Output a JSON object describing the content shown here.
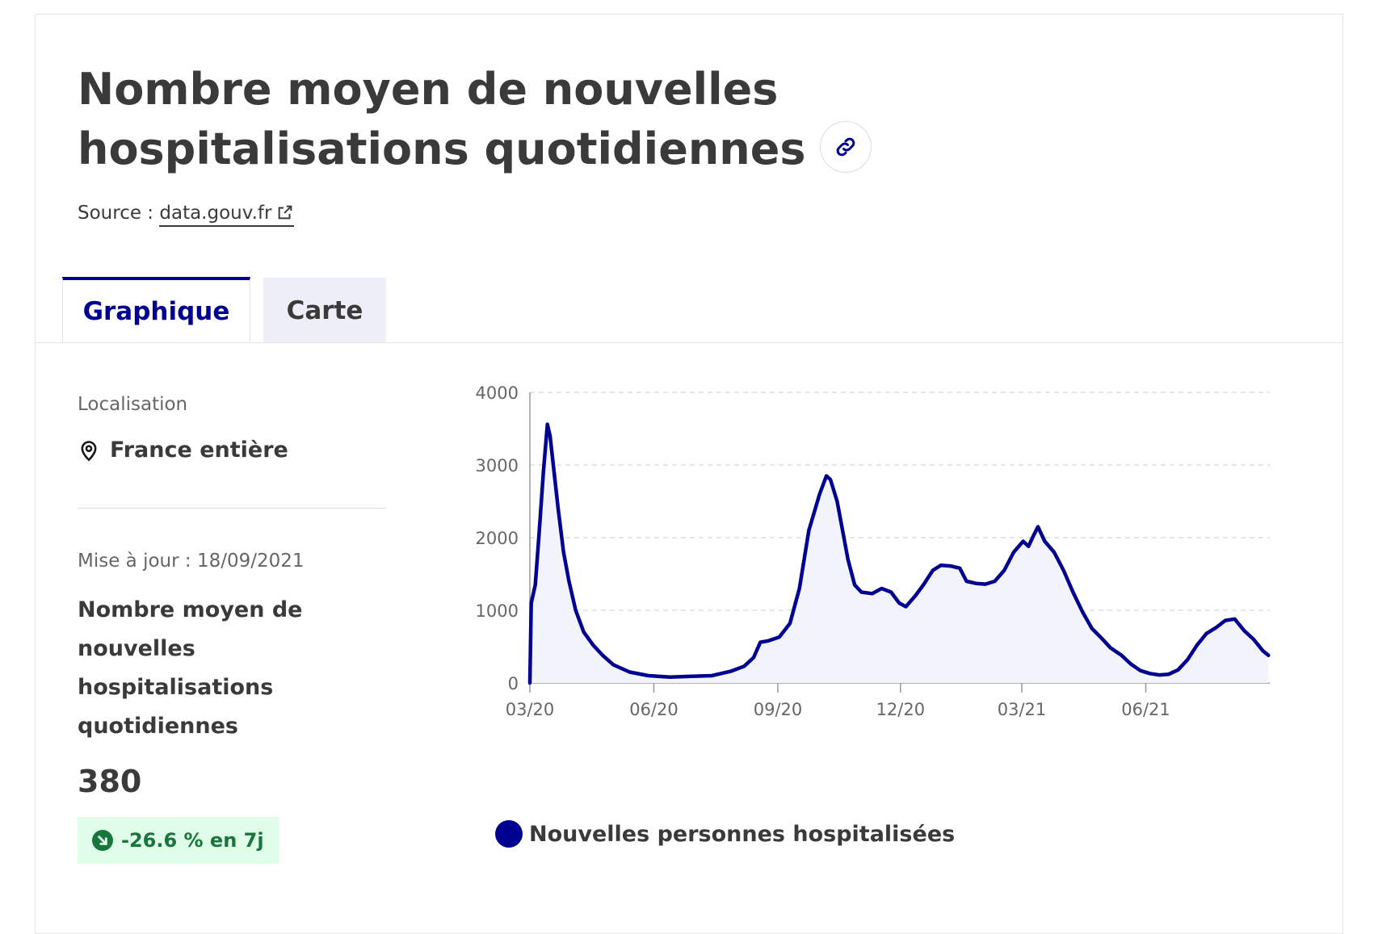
{
  "header": {
    "title": "Nombre moyen de nouvelles hospitalisations quotidiennes",
    "source_prefix": "Source : ",
    "source_link": "data.gouv.fr"
  },
  "tabs": [
    {
      "label": "Graphique",
      "active": true
    },
    {
      "label": "Carte",
      "active": false
    }
  ],
  "sidebar": {
    "location_label": "Localisation",
    "location_value": "France entière",
    "updated": "Mise à jour : 18/09/2021",
    "kpi_title": "Nombre moyen de nouvelles hospitalisations quotidiennes",
    "kpi_value": "380",
    "kpi_change": "-26.6 % en 7j"
  },
  "colors": {
    "accent": "#000091",
    "badge_bg": "#dffde9",
    "badge_text": "#18753c",
    "area_fill": "#f3f3fb"
  },
  "icons": {
    "link": "link-icon",
    "external": "external-link-icon",
    "location": "map-pin-icon",
    "trend": "arrow-down-right-icon"
  },
  "chart_data": {
    "type": "area",
    "series": [
      {
        "name": "Nouvelles personnes hospitalisées",
        "points": [
          [
            "2020-03-19",
            0
          ],
          [
            "2020-03-20",
            1100
          ],
          [
            "2020-03-23",
            1350
          ],
          [
            "2020-03-26",
            2100
          ],
          [
            "2020-03-29",
            2900
          ],
          [
            "2020-04-01",
            3560
          ],
          [
            "2020-04-03",
            3400
          ],
          [
            "2020-04-06",
            2900
          ],
          [
            "2020-04-09",
            2400
          ],
          [
            "2020-04-13",
            1800
          ],
          [
            "2020-04-17",
            1400
          ],
          [
            "2020-04-22",
            1000
          ],
          [
            "2020-04-28",
            700
          ],
          [
            "2020-05-05",
            520
          ],
          [
            "2020-05-12",
            380
          ],
          [
            "2020-05-20",
            250
          ],
          [
            "2020-06-01",
            150
          ],
          [
            "2020-06-15",
            100
          ],
          [
            "2020-07-01",
            80
          ],
          [
            "2020-07-15",
            90
          ],
          [
            "2020-08-01",
            100
          ],
          [
            "2020-08-15",
            160
          ],
          [
            "2020-08-25",
            230
          ],
          [
            "2020-09-01",
            350
          ],
          [
            "2020-09-06",
            560
          ],
          [
            "2020-09-12",
            580
          ],
          [
            "2020-09-20",
            630
          ],
          [
            "2020-09-28",
            820
          ],
          [
            "2020-10-05",
            1300
          ],
          [
            "2020-10-12",
            2100
          ],
          [
            "2020-10-20",
            2600
          ],
          [
            "2020-10-25",
            2850
          ],
          [
            "2020-10-28",
            2800
          ],
          [
            "2020-11-02",
            2500
          ],
          [
            "2020-11-06",
            2100
          ],
          [
            "2020-11-10",
            1700
          ],
          [
            "2020-11-15",
            1350
          ],
          [
            "2020-11-20",
            1250
          ],
          [
            "2020-11-28",
            1230
          ],
          [
            "2020-12-05",
            1300
          ],
          [
            "2020-12-12",
            1250
          ],
          [
            "2020-12-18",
            1100
          ],
          [
            "2020-12-23",
            1050
          ],
          [
            "2020-12-30",
            1200
          ],
          [
            "2021-01-05",
            1350
          ],
          [
            "2021-01-12",
            1550
          ],
          [
            "2021-01-18",
            1620
          ],
          [
            "2021-01-25",
            1610
          ],
          [
            "2021-02-01",
            1580
          ],
          [
            "2021-02-06",
            1400
          ],
          [
            "2021-02-13",
            1370
          ],
          [
            "2021-02-20",
            1360
          ],
          [
            "2021-02-27",
            1400
          ],
          [
            "2021-03-06",
            1550
          ],
          [
            "2021-03-13",
            1800
          ],
          [
            "2021-03-20",
            1950
          ],
          [
            "2021-03-24",
            1880
          ],
          [
            "2021-03-27",
            2000
          ],
          [
            "2021-03-31",
            2150
          ],
          [
            "2021-04-05",
            1950
          ],
          [
            "2021-04-12",
            1800
          ],
          [
            "2021-04-19",
            1550
          ],
          [
            "2021-04-26",
            1250
          ],
          [
            "2021-05-03",
            980
          ],
          [
            "2021-05-10",
            750
          ],
          [
            "2021-05-17",
            620
          ],
          [
            "2021-05-24",
            480
          ],
          [
            "2021-06-01",
            380
          ],
          [
            "2021-06-08",
            260
          ],
          [
            "2021-06-15",
            170
          ],
          [
            "2021-06-22",
            130
          ],
          [
            "2021-06-29",
            110
          ],
          [
            "2021-07-06",
            120
          ],
          [
            "2021-07-13",
            180
          ],
          [
            "2021-07-20",
            320
          ],
          [
            "2021-07-27",
            520
          ],
          [
            "2021-08-03",
            680
          ],
          [
            "2021-08-10",
            760
          ],
          [
            "2021-08-17",
            860
          ],
          [
            "2021-08-24",
            880
          ],
          [
            "2021-08-31",
            720
          ],
          [
            "2021-09-07",
            600
          ],
          [
            "2021-09-14",
            440
          ],
          [
            "2021-09-18",
            380
          ]
        ]
      }
    ],
    "x_ticks": [
      {
        "date": "2020-03-19",
        "label": "03/20"
      },
      {
        "date": "2020-06-19",
        "label": "06/20"
      },
      {
        "date": "2020-09-19",
        "label": "09/20"
      },
      {
        "date": "2020-12-19",
        "label": "12/20"
      },
      {
        "date": "2021-03-19",
        "label": "03/21"
      },
      {
        "date": "2021-06-19",
        "label": "06/21"
      }
    ],
    "x_range": [
      "2020-03-19",
      "2021-09-19"
    ],
    "y_ticks": [
      0,
      1000,
      2000,
      3000,
      4000
    ],
    "ylim": [
      0,
      4000
    ],
    "grid": true,
    "legend_position": "bottom"
  }
}
